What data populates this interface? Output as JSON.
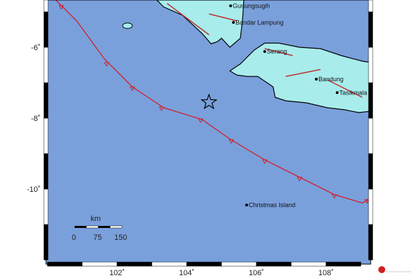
{
  "map": {
    "colors": {
      "water": "#7aa0dc",
      "land": "#a8ecec",
      "trench": "#d0202a",
      "frame": "#000000"
    },
    "lat_labels": [
      {
        "lat": -6,
        "text": "-6˚"
      },
      {
        "lat": -8,
        "text": "-8˚"
      },
      {
        "lat": -10,
        "text": "-10˚"
      }
    ],
    "lon_labels": [
      {
        "lon": 102,
        "text": "102˚"
      },
      {
        "lon": 104,
        "text": "104˚"
      },
      {
        "lon": 106,
        "text": "106˚"
      },
      {
        "lon": 108,
        "text": "108˚"
      }
    ],
    "cities": [
      {
        "name": "Gunungsugih",
        "lon": 105.26,
        "lat": -4.83
      },
      {
        "name": "Bandar Lampung",
        "lon": 105.34,
        "lat": -5.3
      },
      {
        "name": "Serang",
        "lon": 106.24,
        "lat": -6.12
      },
      {
        "name": "Bandung",
        "lon": 107.72,
        "lat": -6.9
      },
      {
        "name": "Tasikmala",
        "lon": 108.32,
        "lat": -7.28
      },
      {
        "name": "Christmas Island",
        "lon": 105.72,
        "lat": -10.45
      }
    ],
    "epicenter": {
      "lon": 104.64,
      "lat": -7.55,
      "icon": "star-icon"
    },
    "scale_bar": {
      "unit": "km",
      "ticks": [
        "0",
        "75",
        "150"
      ]
    }
  }
}
